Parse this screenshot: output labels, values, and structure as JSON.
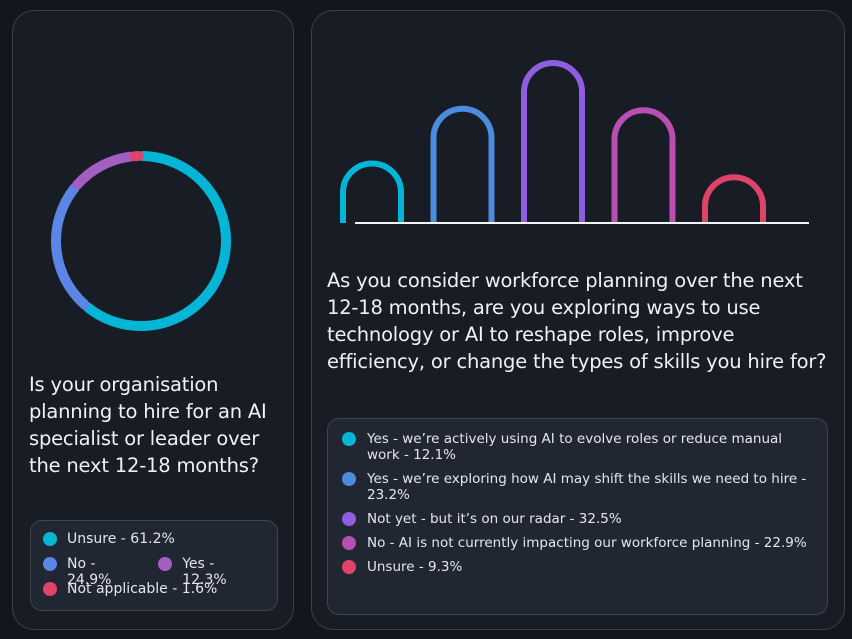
{
  "colors": {
    "unsure": "#05b5d6",
    "no": "#5b86e6",
    "yes": "#a45dc2",
    "not_applicable": "#e0436a",
    "blue": "#4b8ce0",
    "purple": "#8f5ee0",
    "magenta": "#b94fb0",
    "pink": "#e0436a"
  },
  "chart_data": [
    {
      "type": "pie",
      "title": "Is your organisation planning to hire for an AI specialist or leader over the next 12-18 months?",
      "series": [
        {
          "label": "Unsure - 61.2%",
          "value": 61.2,
          "color": "#05b5d6"
        },
        {
          "label": "No - 24.9%",
          "value": 24.9,
          "color": "#5b86e6"
        },
        {
          "label": "Yes - 12.3%",
          "value": 12.3,
          "color": "#a45dc2"
        },
        {
          "label": "Not applicable - 1.6%",
          "value": 1.6,
          "color": "#e0436a"
        }
      ]
    },
    {
      "type": "bar",
      "title": "As you consider workforce planning over the next 12-18 months, are you exploring ways to use technology or AI to reshape roles, improve efficiency, or change the types of skills you hire for?",
      "categories": [
        "Yes - we're actively using AI to evolve roles or reduce manual work",
        "Yes - we're exploring how AI may shift the skills we need to hire",
        "Not yet - but it's on our radar",
        "No - AI is not currently impacting our workforce planning",
        "Unsure"
      ],
      "values": [
        12.1,
        23.2,
        32.5,
        22.9,
        9.3
      ],
      "colors": [
        "#05b5d6",
        "#4b8ce0",
        "#8f5ee0",
        "#b94fb0",
        "#e0436a"
      ],
      "ylim": [
        0,
        32.5
      ],
      "legend": [
        "Yes - we’re actively using AI to evolve roles or reduce manual work - 12.1%",
        "Yes - we’re exploring how AI may shift the skills we need to hire - 23.2%",
        "Not yet - but it’s on our radar - 32.5%",
        "No - AI is not currently impacting our workforce planning - 22.9%",
        "Unsure - 9.3%"
      ]
    }
  ]
}
